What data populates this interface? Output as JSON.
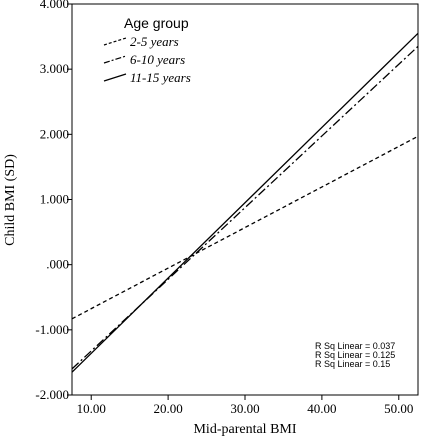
{
  "chart_data": {
    "type": "line",
    "xlabel": "Mid-parental BMI",
    "ylabel": "Child BMI (SD)",
    "xlim": [
      7.5,
      52.5
    ],
    "ylim": [
      -2.0,
      4.0
    ],
    "x_ticks": [
      "10.00",
      "20.00",
      "30.00",
      "40.00",
      "50.00"
    ],
    "x_tick_values": [
      10,
      20,
      30,
      40,
      50
    ],
    "y_ticks": [
      "4.000",
      "3.000",
      "2.000",
      "1.000",
      ".000",
      "-1.000",
      "-2.000"
    ],
    "y_tick_values": [
      4,
      3,
      2,
      1,
      0,
      -1,
      -2
    ],
    "grid": false,
    "legend": {
      "title": "Age group",
      "placement": "top-left",
      "entries": [
        "2-5 years",
        "6-10 years",
        "11-15 years"
      ]
    },
    "series": [
      {
        "name": "2-5 years",
        "dash": "short-dash",
        "x": [
          7.5,
          52.5
        ],
        "y": [
          -0.83,
          1.97
        ]
      },
      {
        "name": "6-10 years",
        "dash": "dash-dot",
        "x": [
          7.5,
          52.5
        ],
        "y": [
          -1.6,
          3.35
        ]
      },
      {
        "name": "11-15 years",
        "dash": "solid",
        "x": [
          7.5,
          52.5
        ],
        "y": [
          -1.65,
          3.55
        ]
      }
    ],
    "annotations": [
      "R Sq Linear = 0.037",
      "R Sq Linear = 0.125",
      "R Sq Linear = 0.15"
    ]
  }
}
